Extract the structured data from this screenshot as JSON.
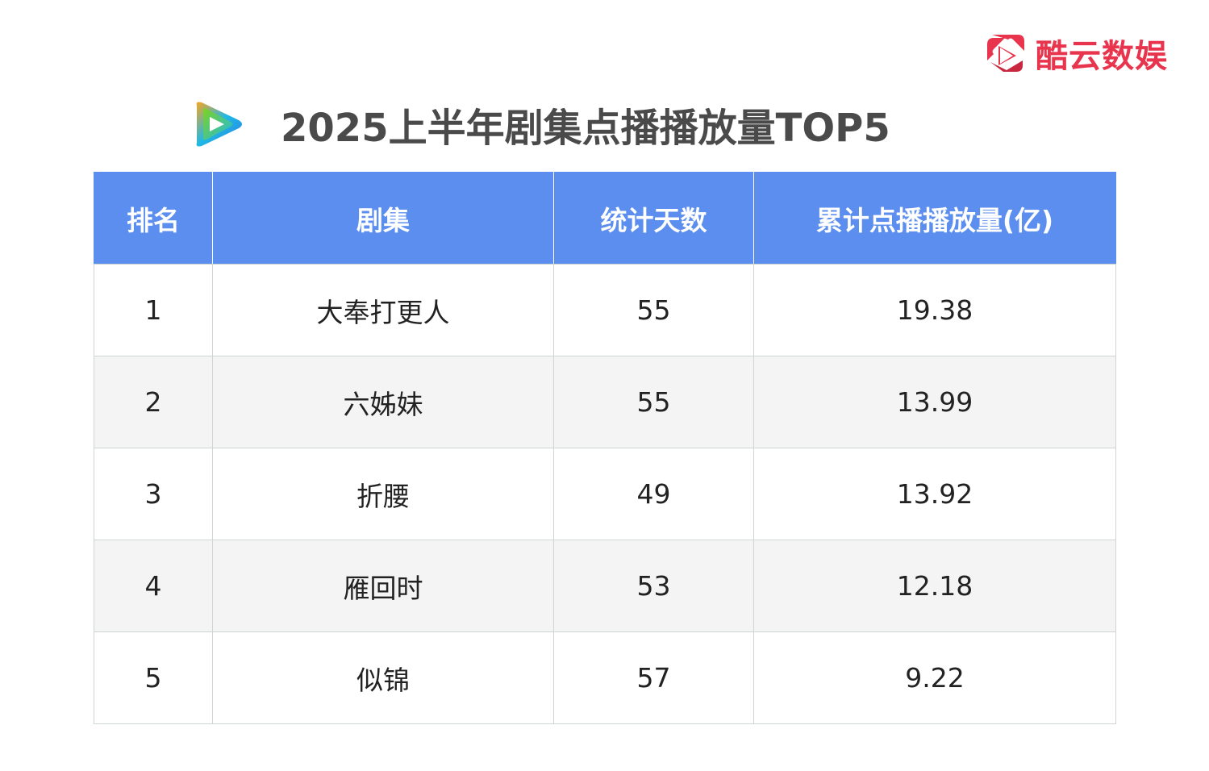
{
  "brand": {
    "name": "酷云数娱",
    "icon": "kuyun-play-icon",
    "color": "#e8344d"
  },
  "title_logo": "tencent-video-icon",
  "chart_data": {
    "type": "table",
    "title": "2025上半年剧集点播播放量TOP5",
    "columns": [
      "排名",
      "剧集",
      "统计天数",
      "累计点播播放量(亿)"
    ],
    "rows": [
      {
        "rank": "1",
        "drama": "大奉打更人",
        "days": "55",
        "views": "19.38"
      },
      {
        "rank": "2",
        "drama": "六姊妹",
        "days": "55",
        "views": "13.99"
      },
      {
        "rank": "3",
        "drama": "折腰",
        "days": "49",
        "views": "13.92"
      },
      {
        "rank": "4",
        "drama": "雁回时",
        "days": "53",
        "views": "12.18"
      },
      {
        "rank": "5",
        "drama": "似锦",
        "days": "57",
        "views": "9.22"
      }
    ]
  },
  "colors": {
    "header_bg": "#5b8eee",
    "header_text": "#ffffff",
    "alt_row_bg": "#f4f4f4",
    "title_text": "#4a4a4a"
  }
}
